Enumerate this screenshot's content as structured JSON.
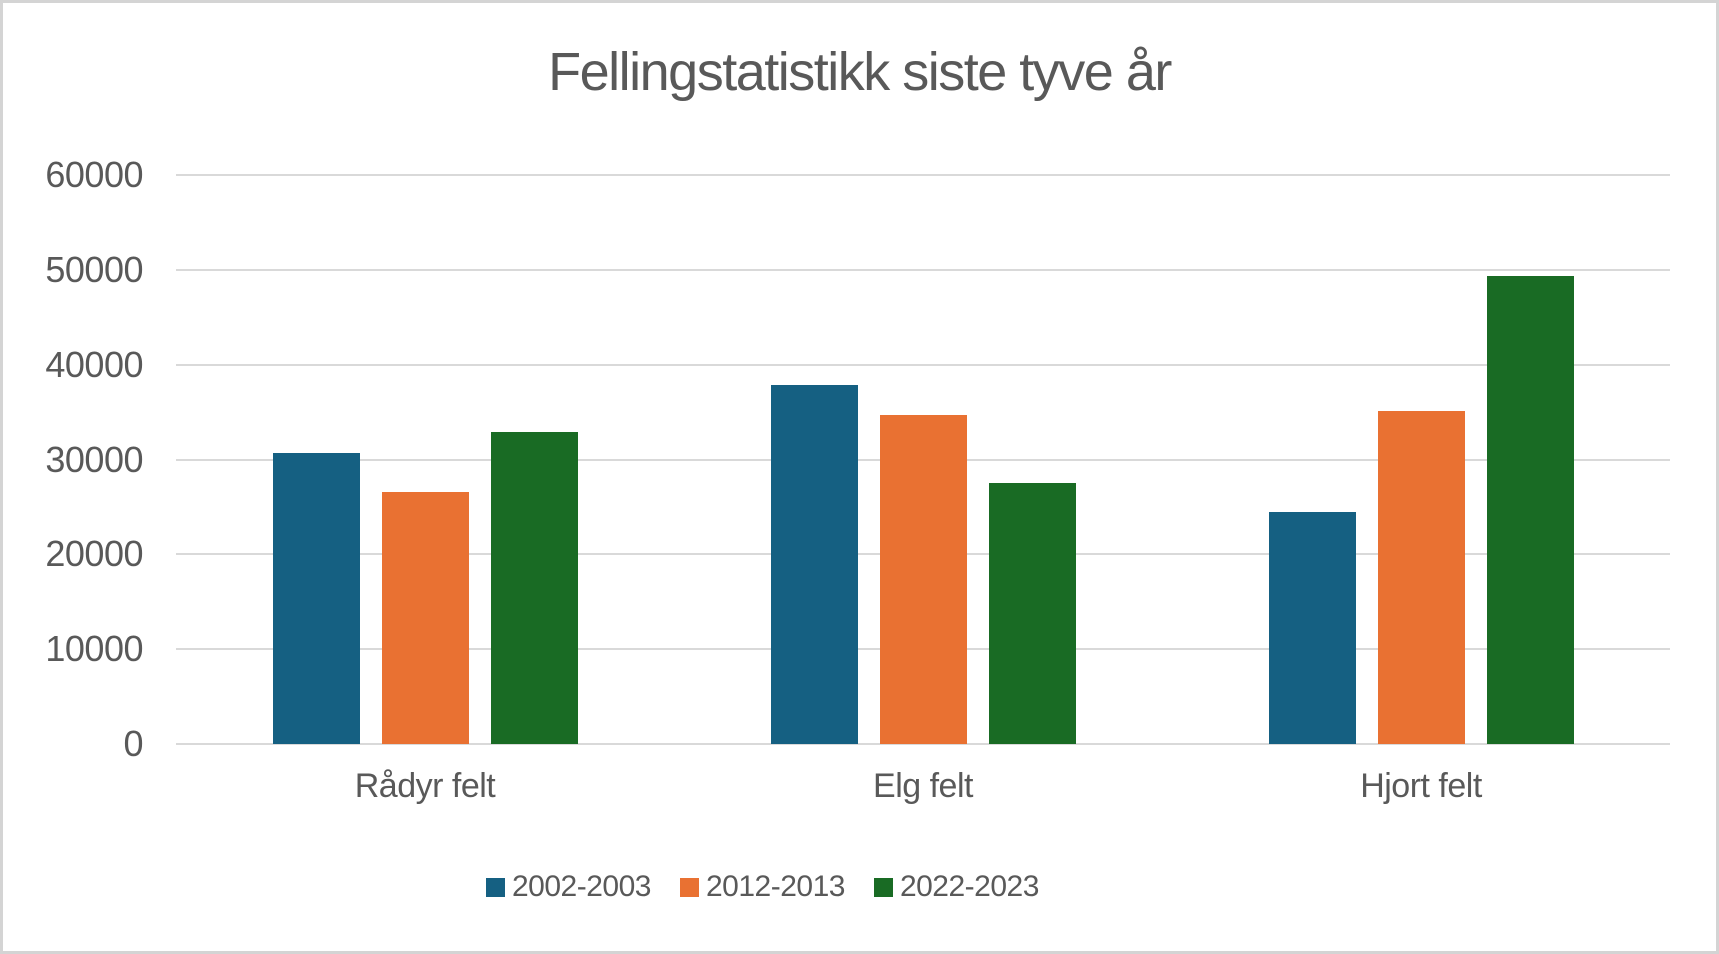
{
  "frame": {
    "background": "#ffffff",
    "border_color": "#d4d4d4"
  },
  "chart_data": {
    "type": "bar",
    "title": "Fellingstatistikk siste tyve år",
    "categories": [
      "Rådyr felt",
      "Elg felt",
      "Hjort felt"
    ],
    "series": [
      {
        "name": "2002-2003",
        "color": "#156082",
        "values": [
          30700,
          37900,
          24500
        ]
      },
      {
        "name": "2012-2013",
        "color": "#E97132",
        "values": [
          26600,
          34700,
          35100
        ]
      },
      {
        "name": "2022-2023",
        "color": "#196B24",
        "values": [
          32900,
          27500,
          49300
        ]
      }
    ],
    "xlabel": "",
    "ylabel": "",
    "ylim": [
      0,
      60000
    ],
    "yticks": [
      0,
      10000,
      20000,
      30000,
      40000,
      50000,
      60000
    ],
    "grid": true,
    "legend_position": "bottom",
    "text_color": "#595959",
    "gridline_color": "#D9D9D9"
  }
}
